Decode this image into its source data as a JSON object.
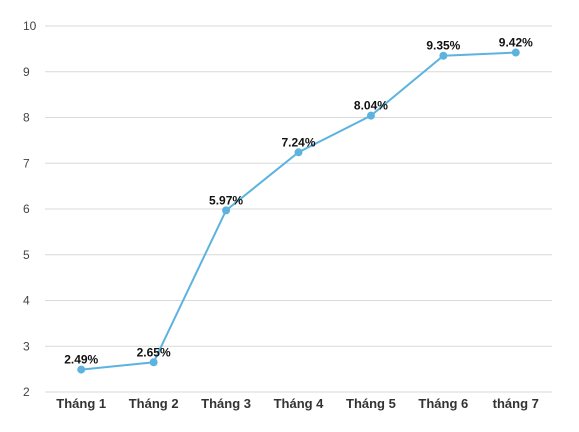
{
  "chart_data": {
    "type": "line",
    "title": "",
    "xlabel": "",
    "ylabel": "",
    "categories": [
      "Tháng 1",
      "Tháng 2",
      "Tháng 3",
      "Tháng 4",
      "Tháng 5",
      "Tháng 6",
      "tháng 7"
    ],
    "series": [
      {
        "values": [
          2.49,
          2.65,
          5.97,
          7.24,
          8.04,
          9.35,
          9.42
        ],
        "labels": [
          "2.49%",
          "2.65%",
          "5.97%",
          "7.24%",
          "8.04%",
          "9.35%",
          "9.42%"
        ],
        "color": "#5DB3E0"
      }
    ],
    "ylim": [
      2,
      10
    ],
    "yticks": [
      2,
      3,
      4,
      5,
      6,
      7,
      8,
      9,
      10
    ],
    "ytick_labels": [
      "2",
      "3",
      "4",
      "5",
      "6",
      "7",
      "8",
      "9",
      "10"
    ],
    "grid": true,
    "legend": "none"
  }
}
